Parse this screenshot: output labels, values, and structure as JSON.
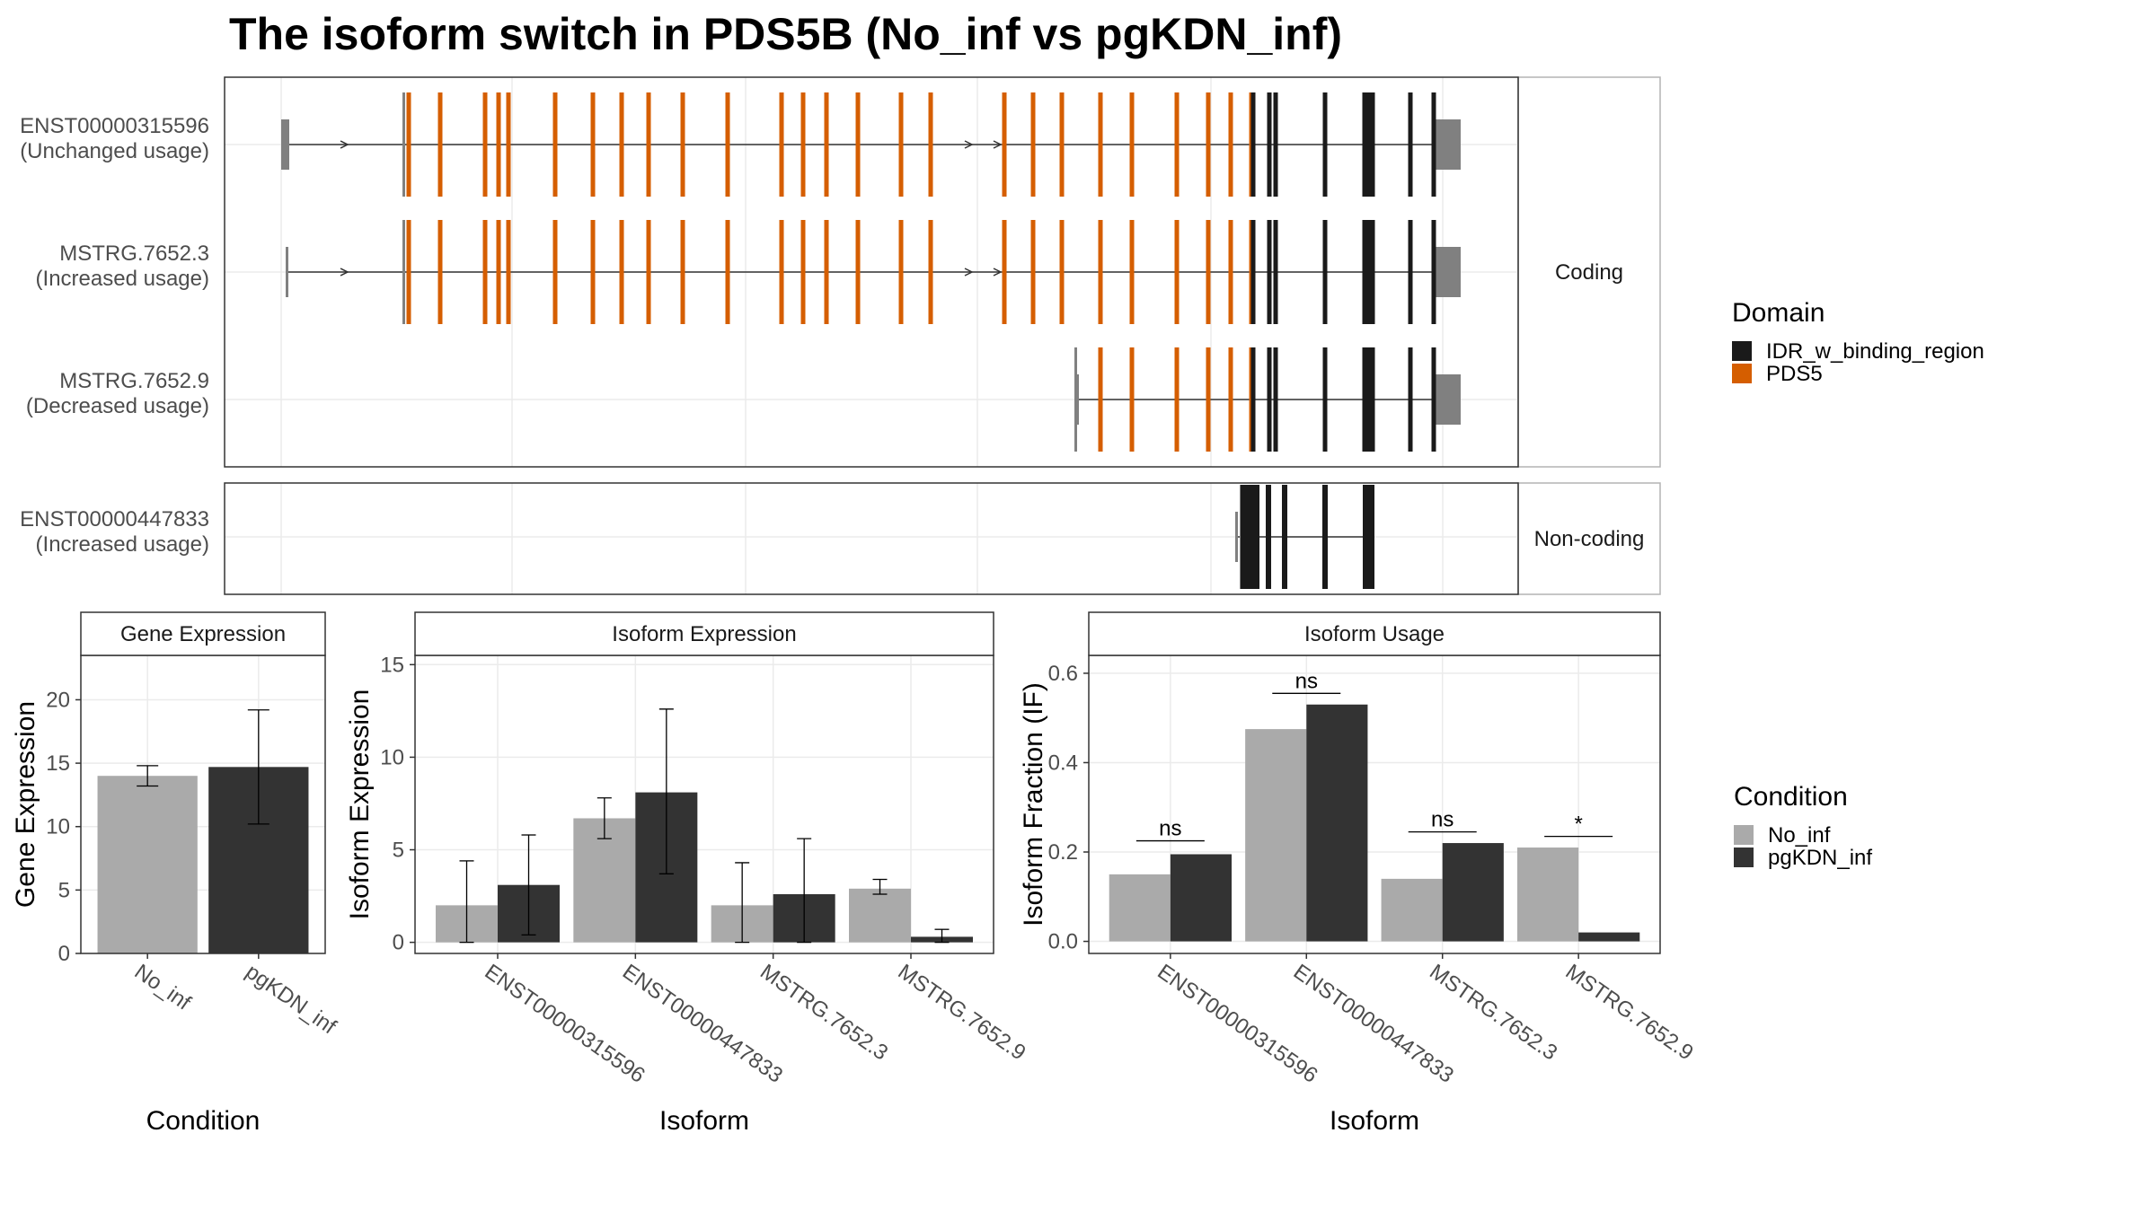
{
  "title": "The isoform switch in PDS5B (No_inf vs pgKDN_inf)",
  "colors": {
    "pds5": "#D55E00",
    "idr": "#1a1a1a",
    "utr": "#808080",
    "no_inf": "#aaaaaa",
    "pgkdn_inf": "#333333",
    "grid": "#ebebeb",
    "strip": "#ffffff",
    "axis_text": "#4d4d4d"
  },
  "chart_data": [
    {
      "type": "gene-structure",
      "panel": "structure",
      "facets": [
        "Coding",
        "Non-coding"
      ],
      "transcripts": [
        {
          "id": "ENST00000315596",
          "usage": "(Unchanged usage)",
          "facet": "Coding"
        },
        {
          "id": "MSTRG.7652.3",
          "usage": "(Increased usage)",
          "facet": "Coding"
        },
        {
          "id": "MSTRG.7652.9",
          "usage": "(Decreased usage)",
          "facet": "Coding"
        },
        {
          "id": "ENST00000447833",
          "usage": "(Increased usage)",
          "facet": "Non-coding"
        }
      ],
      "legend": {
        "title": "Domain",
        "entries": [
          {
            "label": "IDR_w_binding_region",
            "color": "#1a1a1a"
          },
          {
            "label": "PDS5",
            "color": "#D55E00"
          }
        ]
      }
    },
    {
      "type": "bar",
      "panel": "gene",
      "strip": "Gene Expression",
      "xlabel": "Condition",
      "ylabel": "Gene Expression",
      "ylim": [
        0,
        23.5
      ],
      "yticks": [
        0,
        5,
        10,
        15,
        20
      ],
      "categories": [
        "No_inf",
        "pgKDN_inf"
      ],
      "values": [
        14.0,
        14.7
      ],
      "errors": [
        [
          13.2,
          14.8
        ],
        [
          10.2,
          19.2
        ]
      ]
    },
    {
      "type": "bar",
      "panel": "isoexp",
      "strip": "Isoform Expression",
      "xlabel": "Isoform",
      "ylabel": "Isoform Expression",
      "ylim": [
        -0.6,
        15.5
      ],
      "yticks": [
        0,
        5,
        10,
        15
      ],
      "categories": [
        "ENST00000315596",
        "ENST00000447833",
        "MSTRG.7652.3",
        "MSTRG.7652.9"
      ],
      "series": [
        {
          "name": "No_inf",
          "values": [
            2.0,
            6.7,
            2.0,
            2.9
          ],
          "errors": [
            [
              0.0,
              4.4
            ],
            [
              5.6,
              7.8
            ],
            [
              0.0,
              4.3
            ],
            [
              2.6,
              3.4
            ]
          ]
        },
        {
          "name": "pgKDN_inf",
          "values": [
            3.1,
            8.1,
            2.6,
            0.3
          ],
          "errors": [
            [
              0.4,
              5.8
            ],
            [
              3.7,
              12.6
            ],
            [
              0.0,
              5.6
            ],
            [
              0.0,
              0.7
            ]
          ]
        }
      ]
    },
    {
      "type": "bar",
      "panel": "isousage",
      "strip": "Isoform Usage",
      "xlabel": "Isoform",
      "ylabel": "Isoform Fraction (IF)",
      "ylim": [
        -0.027,
        0.64
      ],
      "yticks": [
        0.0,
        0.2,
        0.4,
        0.6
      ],
      "ytick_labels": [
        "0.0",
        "0.2",
        "0.4",
        "0.6"
      ],
      "categories": [
        "ENST00000315596",
        "ENST00000447833",
        "MSTRG.7652.3",
        "MSTRG.7652.9"
      ],
      "series": [
        {
          "name": "No_inf",
          "values": [
            0.15,
            0.475,
            0.14,
            0.21
          ]
        },
        {
          "name": "pgKDN_inf",
          "values": [
            0.195,
            0.53,
            0.22,
            0.02
          ]
        }
      ],
      "significance": [
        {
          "label": "ns",
          "y": 0.225
        },
        {
          "label": "ns",
          "y": 0.555
        },
        {
          "label": "ns",
          "y": 0.245
        },
        {
          "label": "*",
          "y": 0.235
        }
      ],
      "legend": {
        "title": "Condition",
        "entries": [
          {
            "label": "No_inf",
            "color": "#aaaaaa"
          },
          {
            "label": "pgKDN_inf",
            "color": "#333333"
          }
        ]
      }
    }
  ]
}
